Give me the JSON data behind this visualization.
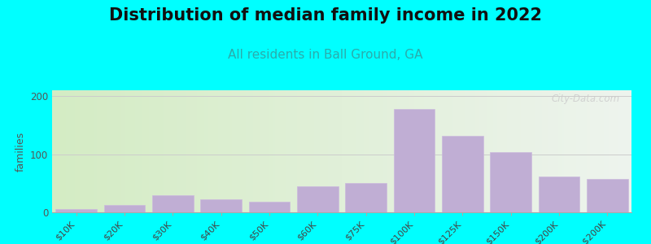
{
  "title": "Distribution of median family income in 2022",
  "subtitle": "All residents in Ball Ground, GA",
  "ylabel": "families",
  "background_color": "#00FFFF",
  "bar_color": "#c0aed4",
  "bar_edge_color": "#ccbbdd",
  "categories": [
    "$10K",
    "$20K",
    "$30K",
    "$40K",
    "$50K",
    "$60K",
    "$75K",
    "$100K",
    "$125K",
    "$150K",
    "$200K",
    "> $200K"
  ],
  "values": [
    5,
    12,
    30,
    22,
    18,
    45,
    50,
    178,
    132,
    104,
    62,
    58
  ],
  "ylim": [
    0,
    210
  ],
  "yticks": [
    0,
    100,
    200
  ],
  "title_fontsize": 15,
  "subtitle_fontsize": 11,
  "subtitle_color": "#2aacac",
  "watermark": "City-Data.com",
  "bar_width": 0.85,
  "grad_left": "#d4ecc4",
  "grad_right": "#eef4ee"
}
